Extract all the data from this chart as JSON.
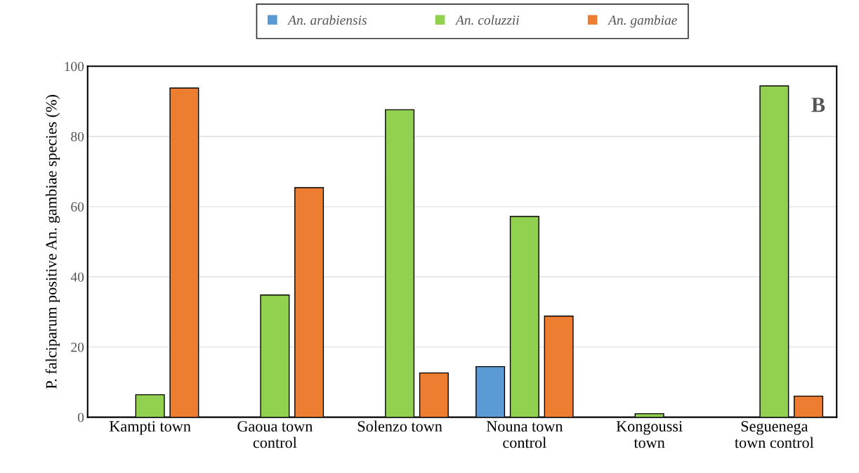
{
  "chart_data": {
    "type": "bar",
    "ylabel": "P. falciparum positive An. gambiae species (%)",
    "categories": [
      "Kampti town",
      "Gaoua town\ncontrol",
      "Solenzo town",
      "Nouna town\ncontrol",
      "Kongoussi\ntown",
      "Seguenega\ntown control"
    ],
    "series": [
      {
        "name": "An. arabiensis",
        "color": "#5b9bd5",
        "values": [
          null,
          null,
          null,
          14.4,
          null,
          null
        ]
      },
      {
        "name": "An. coluzzii",
        "color": "#92d050",
        "values": [
          6.4,
          34.8,
          87.6,
          57.2,
          1.0,
          94.4
        ]
      },
      {
        "name": "An. gambiae",
        "color": "#ed7d31",
        "values": [
          93.8,
          65.4,
          12.6,
          28.8,
          null,
          6.0
        ]
      }
    ],
    "ylim": [
      0,
      100
    ],
    "yticks": [
      0,
      20,
      40,
      60,
      80,
      100
    ],
    "grid": "y",
    "legend": "top",
    "annotations": [
      {
        "text": "B"
      }
    ]
  }
}
